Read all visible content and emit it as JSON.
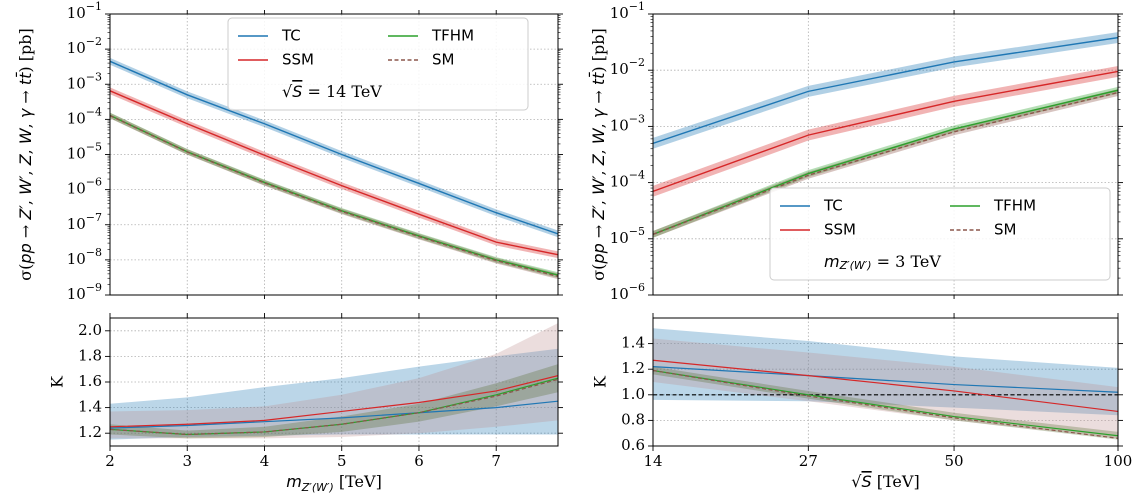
{
  "chart_data": [
    {
      "type": "line",
      "panel": "left-top",
      "ylabel": "σ(pp → Z′, W′, Z, W, γ → tt̄) [pb]",
      "ylabel_parts": [
        "σ(",
        "pp",
        " → ",
        "Z′",
        ", ",
        "W′",
        ", ",
        "Z",
        ", ",
        "W",
        ", ",
        "γ",
        " → ",
        "tt̄",
        ") [pb]"
      ],
      "y_scale": "log",
      "ylim": [
        1e-09,
        0.1
      ],
      "y_ticks": [
        {
          "exp": "-9",
          "v": 1e-09
        },
        {
          "exp": "-8",
          "v": 1e-08
        },
        {
          "exp": "-7",
          "v": 1e-07
        },
        {
          "exp": "-6",
          "v": 1e-06
        },
        {
          "exp": "-5",
          "v": 1e-05
        },
        {
          "exp": "-4",
          "v": 0.0001
        },
        {
          "exp": "-3",
          "v": 0.001
        },
        {
          "exp": "-2",
          "v": 0.01
        },
        {
          "exp": "-1",
          "v": 0.1
        }
      ],
      "xlim": [
        2,
        7.8
      ],
      "x": [
        2,
        3,
        4,
        5,
        6,
        7,
        7.8
      ],
      "grid": true,
      "legend_position": "top-right",
      "annotation": {
        "main": "√S = 14 TeV",
        "sqrt": "√",
        "var": "S",
        "rest": " = 14 TeV"
      },
      "series": [
        {
          "name": "TC",
          "color": "#1f77b4",
          "style": "solid",
          "values": [
            0.0045,
            0.0005,
            7.5e-05,
            1e-05,
            1.5e-06,
            2.2e-07,
            5.5e-08
          ],
          "band_factor": 1.25
        },
        {
          "name": "SSM",
          "color": "#d62728",
          "style": "solid",
          "values": [
            0.00065,
            7.5e-05,
            9.5e-06,
            1.3e-06,
            2e-07,
            3.2e-08,
            1.4e-08
          ],
          "band_factor": 1.25
        },
        {
          "name": "TFHM",
          "color": "#2ca02c",
          "style": "solid",
          "values": [
            0.00013,
            1.2e-05,
            1.6e-06,
            2.5e-07,
            4.8e-08,
            1e-08,
            3.7e-09
          ],
          "band_factor": 1.2
        },
        {
          "name": "SM",
          "color": "#8c564b",
          "style": "dashed",
          "values": [
            0.000128,
            1.18e-05,
            1.55e-06,
            2.4e-07,
            4.6e-08,
            9.5e-09,
            3.4e-09
          ],
          "band_factor": 1.2
        }
      ]
    },
    {
      "type": "line",
      "panel": "left-bottom",
      "ylabel": "K",
      "xlabel": "m_Z′(W′) [TeV]",
      "xlabel_parts": {
        "m": "m",
        "sub": "Z′(W′)",
        "unit": " [TeV]"
      },
      "xlim": [
        2,
        7.8
      ],
      "ylim": [
        1.1,
        2.1
      ],
      "x_ticks": [
        "2",
        "3",
        "4",
        "5",
        "6",
        "7"
      ],
      "x_tick_values": [
        2,
        3,
        4,
        5,
        6,
        7
      ],
      "y_ticks": [
        "1.2",
        "1.4",
        "1.6",
        "1.8",
        "2.0"
      ],
      "y_tick_values": [
        1.2,
        1.4,
        1.6,
        1.8,
        2.0
      ],
      "x": [
        2,
        3,
        4,
        5,
        6,
        7,
        7.8
      ],
      "grid": true,
      "series": [
        {
          "name": "TC",
          "color": "#1f77b4",
          "style": "solid",
          "values": [
            1.24,
            1.26,
            1.29,
            1.32,
            1.36,
            1.4,
            1.45
          ],
          "band_low": [
            1.15,
            1.17,
            1.18,
            1.19,
            1.19,
            1.19,
            1.19
          ],
          "band_high": [
            1.43,
            1.48,
            1.56,
            1.63,
            1.72,
            1.8,
            1.86
          ],
          "band_color": "#1f77b4",
          "band_opacity": 0.3
        },
        {
          "name": "SSM",
          "color": "#d62728",
          "style": "solid",
          "values": [
            1.25,
            1.27,
            1.3,
            1.37,
            1.44,
            1.53,
            1.65
          ],
          "band_low": [
            1.16,
            1.16,
            1.16,
            1.17,
            1.2,
            1.25,
            1.3
          ],
          "band_high": [
            1.37,
            1.38,
            1.41,
            1.5,
            1.63,
            1.82,
            2.06
          ],
          "band_color": "#bc8f8f",
          "band_opacity": 0.3
        },
        {
          "name": "TFHM",
          "color": "#2ca02c",
          "style": "solid",
          "values": [
            1.23,
            1.19,
            1.21,
            1.27,
            1.36,
            1.5,
            1.63
          ],
          "band_low": [
            1.19,
            1.16,
            1.17,
            1.21,
            1.29,
            1.41,
            1.52
          ],
          "band_high": [
            1.27,
            1.22,
            1.25,
            1.33,
            1.43,
            1.59,
            1.74
          ],
          "band_color": "#556b2f",
          "band_opacity": 0.3
        },
        {
          "name": "SM",
          "color": "#8c564b",
          "style": "dashed",
          "values": [
            1.23,
            1.19,
            1.21,
            1.27,
            1.36,
            1.49,
            1.62
          ]
        }
      ]
    },
    {
      "type": "line",
      "panel": "right-top",
      "ylabel": "σ(pp → Z′, W′, Z, W, γ → tt̄) [pb]",
      "ylabel_parts": [
        "σ(",
        "pp",
        " → ",
        "Z′",
        ", ",
        "W′",
        ", ",
        "Z",
        ", ",
        "W",
        ", ",
        "γ",
        " → ",
        "tt̄",
        ") [pb]"
      ],
      "y_scale": "log",
      "x_scale": "log",
      "ylim": [
        1e-06,
        0.1
      ],
      "y_ticks": [
        {
          "exp": "-6",
          "v": 1e-06
        },
        {
          "exp": "-5",
          "v": 1e-05
        },
        {
          "exp": "-4",
          "v": 0.0001
        },
        {
          "exp": "-3",
          "v": 0.001
        },
        {
          "exp": "-2",
          "v": 0.01
        },
        {
          "exp": "-1",
          "v": 0.1
        }
      ],
      "xlim": [
        14,
        100
      ],
      "x": [
        14,
        27,
        50,
        100
      ],
      "grid": true,
      "legend_position": "lower-right",
      "annotation": {
        "main": "m_Z′(W′) = 3 TeV",
        "m": "m",
        "sub": "Z′(W′)",
        "rest": " = 3 TeV"
      },
      "series": [
        {
          "name": "TC",
          "color": "#1f77b4",
          "style": "solid",
          "values": [
            0.0005,
            0.0042,
            0.014,
            0.038
          ],
          "band_factor": 1.25
        },
        {
          "name": "SSM",
          "color": "#d62728",
          "style": "solid",
          "values": [
            7e-05,
            0.0007,
            0.0028,
            0.0095
          ],
          "band_factor": 1.25
        },
        {
          "name": "TFHM",
          "color": "#2ca02c",
          "style": "solid",
          "values": [
            1.2e-05,
            0.000145,
            0.0009,
            0.0044
          ],
          "band_factor": 1.15
        },
        {
          "name": "SM",
          "color": "#8c564b",
          "style": "dashed",
          "values": [
            1.2e-05,
            0.000135,
            0.0008,
            0.004
          ],
          "band_factor": 1.15
        }
      ]
    },
    {
      "type": "line",
      "panel": "right-bottom",
      "ylabel": "K",
      "xlabel": "√S [TeV]",
      "xlabel_parts": {
        "sqrt": "√",
        "var": "S",
        "unit": " [TeV]"
      },
      "x_scale": "log",
      "xlim": [
        14,
        100
      ],
      "ylim": [
        0.6,
        1.6
      ],
      "x_ticks": [
        "14",
        "27",
        "50",
        "100"
      ],
      "x_tick_values": [
        14,
        27,
        50,
        100
      ],
      "y_ticks": [
        "0.6",
        "0.8",
        "1.0",
        "1.2",
        "1.4"
      ],
      "y_tick_values": [
        0.6,
        0.8,
        1.0,
        1.2,
        1.4
      ],
      "x": [
        14,
        27,
        50,
        100
      ],
      "grid": true,
      "reference_line": 1.0,
      "series": [
        {
          "name": "TC",
          "color": "#1f77b4",
          "style": "solid",
          "values": [
            1.22,
            1.15,
            1.08,
            1.02
          ],
          "band_low": [
            0.96,
            0.95,
            0.9,
            0.84
          ],
          "band_high": [
            1.52,
            1.42,
            1.3,
            1.21
          ],
          "band_color": "#1f77b4",
          "band_opacity": 0.3
        },
        {
          "name": "SSM",
          "color": "#d62728",
          "style": "solid",
          "values": [
            1.27,
            1.15,
            1.03,
            0.87
          ],
          "band_low": [
            1.1,
            0.95,
            0.8,
            0.66
          ],
          "band_high": [
            1.44,
            1.33,
            1.22,
            1.06
          ],
          "band_color": "#bc8f8f",
          "band_opacity": 0.3
        },
        {
          "name": "TFHM",
          "color": "#2ca02c",
          "style": "solid",
          "values": [
            1.19,
            1.0,
            0.83,
            0.68
          ],
          "band_low": [
            1.16,
            0.97,
            0.8,
            0.65
          ],
          "band_high": [
            1.22,
            1.03,
            0.86,
            0.71
          ],
          "band_color": "#556b2f",
          "band_opacity": 0.3
        },
        {
          "name": "SM",
          "color": "#8c564b",
          "style": "dashed",
          "values": [
            1.19,
            0.99,
            0.82,
            0.66
          ]
        }
      ]
    }
  ]
}
